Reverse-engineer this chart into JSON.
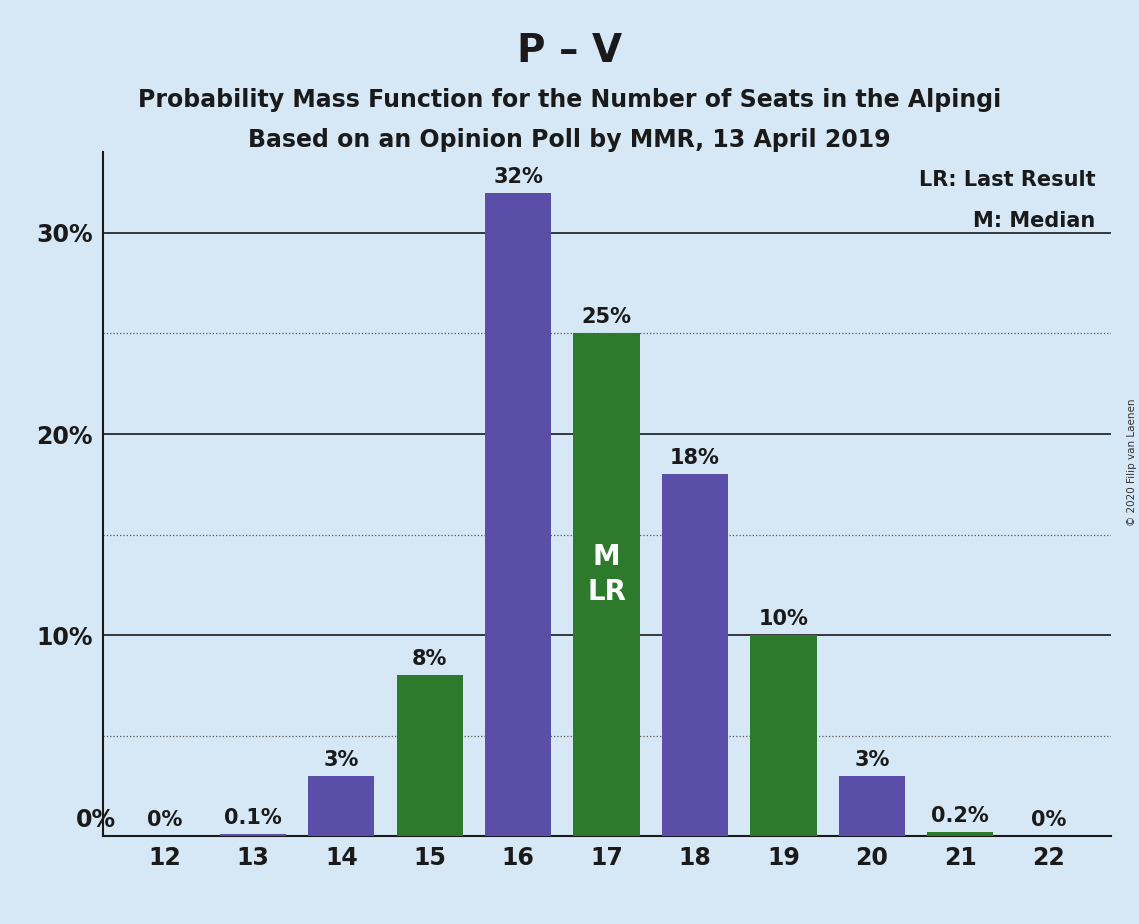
{
  "title": "P – V",
  "subtitle1": "Probability Mass Function for the Number of Seats in the Alpingi",
  "subtitle2": "Based on an Opinion Poll by MMR, 13 April 2019",
  "copyright": "© 2020 Filip van Laenen",
  "seats": [
    12,
    13,
    14,
    15,
    16,
    17,
    18,
    19,
    20,
    21,
    22
  ],
  "values": [
    0.0,
    0.001,
    0.03,
    0.08,
    0.32,
    0.25,
    0.18,
    0.1,
    0.03,
    0.002,
    0.0
  ],
  "labels": [
    "0%",
    "0.1%",
    "3%",
    "8%",
    "32%",
    "25%",
    "18%",
    "10%",
    "3%",
    "0.2%",
    "0%"
  ],
  "colors": [
    "#5B4EA8",
    "#5B4EA8",
    "#5B4EA8",
    "#2D7A2D",
    "#5B4EA8",
    "#2D7A2D",
    "#5B4EA8",
    "#2D7A2D",
    "#5B4EA8",
    "#2D7A2D",
    "#2D7A2D"
  ],
  "median_seat": 17,
  "lr_seat": 17,
  "legend_lr": "LR: Last Result",
  "legend_m": "M: Median",
  "background_color": "#D6E8F5",
  "plot_bg_color": "#D6E8F5",
  "ylim": [
    0,
    0.34
  ],
  "solid_grid": [
    0.1,
    0.2,
    0.3
  ],
  "dotted_grid": [
    0.05,
    0.15,
    0.25
  ],
  "ytick_labels": {
    "0.10": "10%",
    "0.20": "20%",
    "0.30": "30%"
  },
  "bar_width": 0.75,
  "title_fontsize": 28,
  "subtitle_fontsize": 17,
  "label_fontsize": 15,
  "tick_fontsize": 17,
  "inner_label_fontsize": 20,
  "inner_label_color": "#FFFFFF",
  "outer_label_color": "#1A1A1A",
  "spine_color": "#1A1A1A",
  "grid_solid_color": "#1A1A1A",
  "grid_dotted_color": "#555555"
}
